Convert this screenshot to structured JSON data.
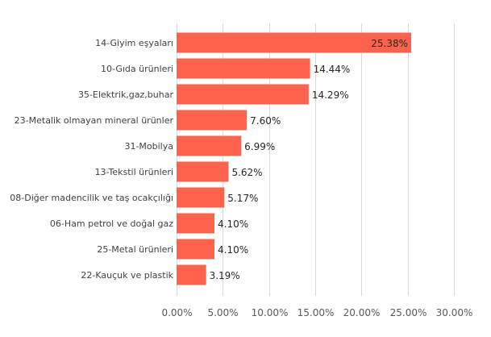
{
  "chart_data": {
    "type": "bar",
    "orientation": "horizontal",
    "categories": [
      "14-Giyim eşyaları",
      "10-Gıda ürünleri",
      "35-Elektrik,gaz,buhar",
      "23-Metalik olmayan mineral ürünler",
      "31-Mobilya",
      "13-Tekstil ürünleri",
      "08-Diğer madencilik ve taş ocakçılığı",
      "06-Ham petrol ve doğal gaz",
      "25-Metal ürünleri",
      "22-Kauçuk ve plastik"
    ],
    "values": [
      25.38,
      14.44,
      14.29,
      7.6,
      6.99,
      5.62,
      5.17,
      4.1,
      4.1,
      3.19
    ],
    "value_labels": [
      "25.38%",
      "14.44%",
      "14.29%",
      "7.60%",
      "6.99%",
      "5.62%",
      "5.17%",
      "4.10%",
      "4.10%",
      "3.19%"
    ],
    "x_ticks": [
      "0.00%",
      "5.00%",
      "10.00%",
      "15.00%",
      "20.00%",
      "25.00%",
      "30.00%"
    ],
    "xlim": [
      0,
      30
    ],
    "title": "",
    "xlabel": "",
    "ylabel": "",
    "grid": true,
    "legend": "none",
    "colors": {
      "bar": "#ff634d",
      "grid": "#d9d9d9"
    }
  }
}
